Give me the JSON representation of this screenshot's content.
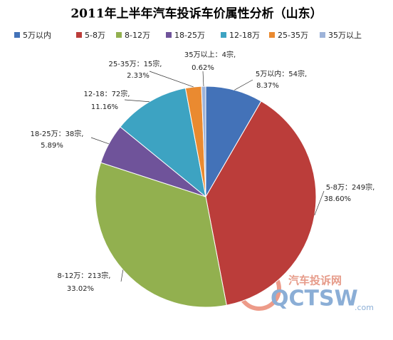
{
  "chart_data": {
    "type": "pie",
    "title": "2011年上半年汽车投诉车价属性分析（山东）",
    "categories": [
      "5万以内",
      "5-8万",
      "8-12万",
      "18-25万",
      "12-18万",
      "25-35万",
      "35万以上"
    ],
    "values": [
      54,
      249,
      213,
      38,
      72,
      15,
      4
    ],
    "value_labels": [
      "5万以内：54宗,",
      "5-8万：249宗,",
      "8-12万：213宗,",
      "18-25万：38宗,",
      "12-18：72宗,",
      "25-35万：15宗,",
      "35万以上：4宗,"
    ],
    "percents": [
      8.37,
      38.6,
      33.02,
      5.89,
      11.16,
      2.33,
      0.62
    ],
    "percent_labels": [
      "8.37%",
      "38.60%",
      "33.02%",
      "5.89%",
      "11.16%",
      "2.33%",
      "0.62%"
    ],
    "colors": [
      "#4372b8",
      "#bb3d3a",
      "#92b04f",
      "#6f539a",
      "#3da3c2",
      "#ea8a30",
      "#9db3d9"
    ],
    "legend": "top",
    "watermark": {
      "name": "汽车投诉网",
      "logo": "QCTSW",
      "domain": ".com"
    }
  }
}
